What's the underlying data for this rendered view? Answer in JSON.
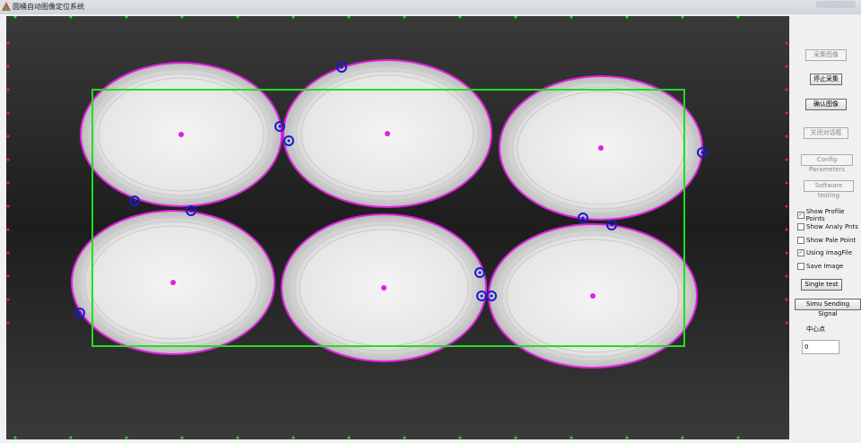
{
  "window": {
    "title": "圆桶自动图像定位系统"
  },
  "panel": {
    "buttons": [
      {
        "label": "采集图像",
        "enabled": false
      },
      {
        "label": "停止采集",
        "enabled": true
      },
      {
        "label": "确认图像",
        "enabled": true
      },
      {
        "label": "关闭对话框",
        "enabled": false
      },
      {
        "label": "Config Parameters",
        "enabled": false
      },
      {
        "label": "Software testing",
        "enabled": false
      }
    ],
    "checkboxes": [
      {
        "label": "Show Profile Points",
        "checked": true
      },
      {
        "label": "Show Analy Pnts",
        "checked": false
      },
      {
        "label": "Show Pale Point",
        "checked": false
      },
      {
        "label": "Using ImagFile",
        "checked": true
      },
      {
        "label": "Save Image",
        "checked": false
      }
    ],
    "single_test": "Single  test",
    "simu_signal": "Simu Sending Signal",
    "center_label": "中心点",
    "center_value": "0"
  },
  "colors": {
    "outline": "#e020e0",
    "roi": "#22dd22",
    "marker": "#1a1ad0",
    "center": "#e020e0"
  }
}
